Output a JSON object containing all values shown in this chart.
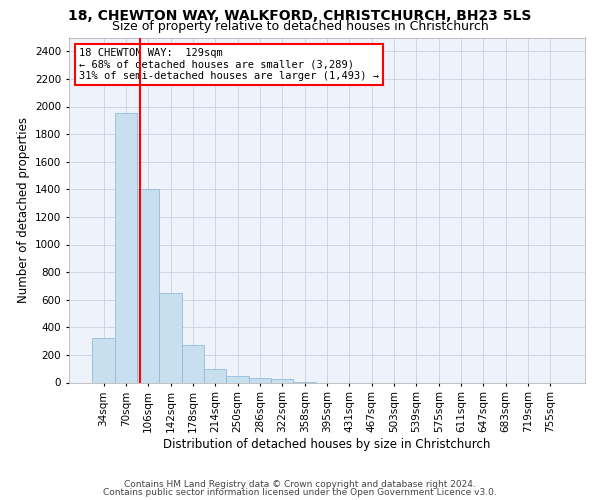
{
  "title1": "18, CHEWTON WAY, WALKFORD, CHRISTCHURCH, BH23 5LS",
  "title2": "Size of property relative to detached houses in Christchurch",
  "xlabel": "Distribution of detached houses by size in Christchurch",
  "ylabel": "Number of detached properties",
  "footer1": "Contains HM Land Registry data © Crown copyright and database right 2024.",
  "footer2": "Contains public sector information licensed under the Open Government Licence v3.0.",
  "bar_labels": [
    "34sqm",
    "70sqm",
    "106sqm",
    "142sqm",
    "178sqm",
    "214sqm",
    "250sqm",
    "286sqm",
    "322sqm",
    "358sqm",
    "395sqm",
    "431sqm",
    "467sqm",
    "503sqm",
    "539sqm",
    "575sqm",
    "611sqm",
    "647sqm",
    "683sqm",
    "719sqm",
    "755sqm"
  ],
  "bar_values": [
    325,
    1950,
    1400,
    650,
    270,
    100,
    45,
    35,
    25,
    5,
    0,
    0,
    0,
    0,
    0,
    0,
    0,
    0,
    0,
    0,
    0
  ],
  "bar_color": "#c8dff0",
  "bar_edge_color": "#8ab4d4",
  "annotation_line1": "18 CHEWTON WAY:  129sqm",
  "annotation_line2": "← 68% of detached houses are smaller (3,289)",
  "annotation_line3": "31% of semi-detached houses are larger (1,493) →",
  "red_line_x": 1.64,
  "ylim": [
    0,
    2500
  ],
  "yticks": [
    0,
    200,
    400,
    600,
    800,
    1000,
    1200,
    1400,
    1600,
    1800,
    2000,
    2200,
    2400
  ],
  "grid_color": "#c8d0e0",
  "bg_color": "#eef2fa",
  "title_fontsize": 10,
  "subtitle_fontsize": 9,
  "axis_label_fontsize": 8.5,
  "tick_fontsize": 7.5,
  "footer_fontsize": 6.5,
  "annot_fontsize": 7.5
}
